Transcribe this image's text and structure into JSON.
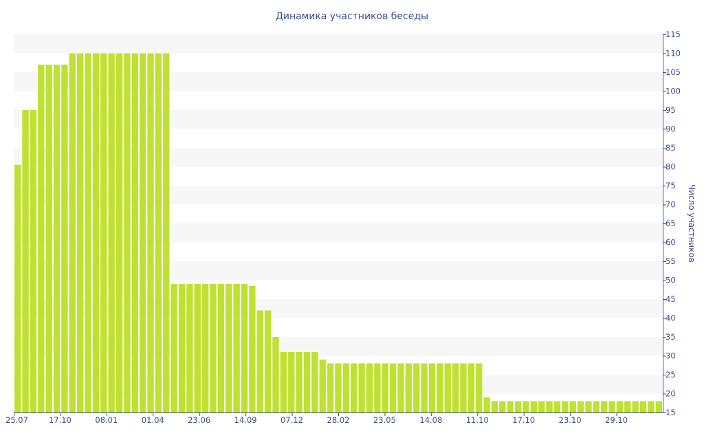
{
  "chart_data": {
    "type": "bar",
    "title": "Динамика участников беседы",
    "xlabel": "",
    "ylabel": "Число участников",
    "ylim": [
      15,
      115
    ],
    "y_ticks": [
      15,
      20,
      25,
      30,
      35,
      40,
      45,
      50,
      55,
      60,
      65,
      70,
      75,
      80,
      85,
      90,
      95,
      100,
      105,
      110,
      115
    ],
    "y_axis_position": "right",
    "grid": "horizontal bands",
    "x_tick_labels": [
      "25.07",
      "17.10",
      "08.01",
      "01.04",
      "23.06",
      "14.09",
      "07.12",
      "28.02",
      "23.05",
      "14.08",
      "11.10",
      "17.10",
      "23.10",
      "29.10"
    ],
    "values": [
      80.5,
      95,
      95,
      107,
      107,
      107,
      107,
      110,
      110,
      110,
      110,
      110,
      110,
      110,
      110,
      110,
      110,
      110,
      110,
      110,
      49,
      49,
      49,
      49,
      49,
      49,
      49,
      49,
      49,
      49,
      48.5,
      42,
      42,
      35,
      31,
      31,
      31,
      31,
      31,
      29,
      28,
      28,
      28,
      28,
      28,
      28,
      28,
      28,
      28,
      28,
      28,
      28,
      28,
      28,
      28,
      28,
      28,
      28,
      28,
      28,
      19,
      18,
      18,
      18,
      18,
      18,
      18,
      18,
      18,
      18,
      18,
      18,
      18,
      18,
      18,
      18,
      18,
      18,
      18,
      18,
      18,
      18,
      18
    ],
    "colors": {
      "bar": "#bfe131",
      "band": "#f7f7f7",
      "text": "#3a4d8f",
      "axis": "#3a4d8f"
    }
  }
}
